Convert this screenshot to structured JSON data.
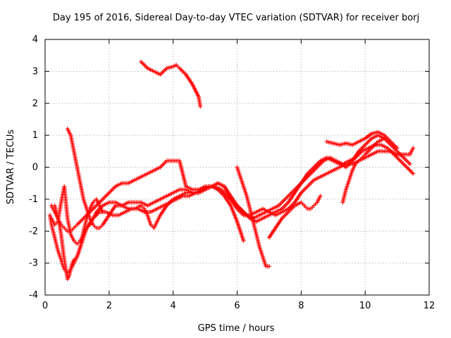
{
  "chart_data": {
    "type": "scatter",
    "title": "Day 195 of 2016, Sidereal Day-to-day VTEC variation (SDTVAR) for receiver borj",
    "xlabel": "GPS time / hours",
    "ylabel": "SDTVAR / TECUs",
    "xlim": [
      0,
      12
    ],
    "ylim": [
      -4,
      4
    ],
    "xticks": [
      "0",
      "2",
      "4",
      "6",
      "8",
      "10",
      "12"
    ],
    "yticks": [
      "-4",
      "-3",
      "-2",
      "-1",
      "0",
      "1",
      "2",
      "3",
      "4"
    ],
    "grid": true,
    "marker": "+",
    "color": "#ff0000",
    "series": [
      {
        "x": [
          3.0,
          3.2,
          3.4,
          3.6,
          3.8,
          4.0,
          4.1,
          4.2,
          4.4,
          4.6,
          4.8,
          4.85
        ],
        "y": [
          3.3,
          3.1,
          3.0,
          2.9,
          3.1,
          3.15,
          3.2,
          3.1,
          2.9,
          2.6,
          2.2,
          1.9
        ]
      },
      {
        "x": [
          0.7,
          0.8,
          0.9,
          1.0,
          1.1,
          1.2,
          1.3,
          1.4,
          1.5,
          1.6,
          1.7,
          1.8,
          2.0,
          2.2,
          2.4,
          2.6,
          2.8,
          3.0,
          3.2,
          3.4,
          3.6,
          3.8,
          4.0,
          4.2,
          4.4,
          4.6,
          4.8,
          5.0,
          5.2,
          5.4,
          5.6,
          5.8,
          6.0,
          6.2
        ],
        "y": [
          1.2,
          1.0,
          0.5,
          0.0,
          -0.5,
          -1.0,
          -1.3,
          -1.6,
          -1.8,
          -1.9,
          -1.9,
          -1.8,
          -1.5,
          -1.2,
          -1.2,
          -1.1,
          -1.1,
          -1.1,
          -1.2,
          -1.1,
          -1.0,
          -0.9,
          -0.8,
          -0.7,
          -0.7,
          -0.8,
          -0.8,
          -0.7,
          -0.6,
          -0.7,
          -0.9,
          -1.2,
          -1.7,
          -2.3
        ]
      },
      {
        "x": [
          0.15,
          0.2,
          0.3,
          0.4,
          0.5,
          0.6,
          0.7,
          0.8,
          0.9,
          1.0,
          1.1,
          1.2,
          1.3,
          1.5,
          1.7,
          1.9,
          2.1,
          2.3,
          2.5,
          2.7,
          2.9,
          3.1,
          3.3,
          3.5,
          3.7,
          3.9,
          4.1,
          4.3,
          4.5,
          4.7,
          4.9,
          5.1,
          5.3,
          5.5,
          5.7,
          5.9,
          6.1,
          6.3,
          6.5,
          6.7,
          6.9,
          7.1,
          7.3,
          7.5,
          7.7,
          7.9,
          8.1,
          8.3,
          8.5,
          8.7,
          8.9,
          9.1,
          9.3,
          9.5,
          9.7,
          9.9,
          10.1,
          10.3,
          10.5,
          10.7,
          10.9,
          11.1,
          11.3,
          11.5
        ],
        "y": [
          -1.5,
          -1.8,
          -2.2,
          -2.6,
          -2.9,
          -3.2,
          -3.3,
          -3.2,
          -3.0,
          -2.8,
          -2.5,
          -2.2,
          -1.9,
          -1.6,
          -1.4,
          -1.4,
          -1.5,
          -1.5,
          -1.4,
          -1.3,
          -1.3,
          -1.4,
          -1.4,
          -1.3,
          -1.2,
          -1.1,
          -1.0,
          -0.9,
          -0.9,
          -0.8,
          -0.7,
          -0.6,
          -0.6,
          -0.7,
          -0.9,
          -1.1,
          -1.3,
          -1.5,
          -1.6,
          -1.5,
          -1.4,
          -1.3,
          -1.2,
          -1.0,
          -0.8,
          -0.6,
          -0.4,
          -0.2,
          0.0,
          0.2,
          0.3,
          0.2,
          0.1,
          0.2,
          0.3,
          0.5,
          0.6,
          0.7,
          0.7,
          0.6,
          0.4,
          0.2,
          0.0,
          -0.2
        ]
      },
      {
        "x": [
          0.2,
          0.3,
          0.4,
          0.5,
          0.6,
          0.7,
          0.8,
          0.9,
          1.0,
          1.2,
          1.4,
          1.6,
          1.8,
          2.0,
          2.2,
          2.4,
          2.6,
          2.8,
          3.0,
          3.2,
          3.4,
          3.6,
          3.8,
          4.0,
          4.2,
          4.4,
          4.6,
          4.8,
          5.0,
          5.2,
          5.4,
          5.6,
          5.8,
          6.0,
          6.2,
          6.4,
          6.6,
          6.8,
          7.0,
          7.2,
          7.4,
          7.6,
          7.8,
          8.0,
          8.2,
          8.4,
          8.6,
          8.8,
          9.0,
          9.2,
          9.4,
          9.6,
          9.8,
          10.0,
          10.2,
          10.4,
          10.6,
          10.8,
          11.0,
          11.2,
          11.4
        ],
        "y": [
          -1.2,
          -1.4,
          -1.6,
          -1.8,
          -1.9,
          -2.0,
          -2.0,
          -1.9,
          -1.8,
          -1.6,
          -1.4,
          -1.2,
          -1.0,
          -0.8,
          -0.6,
          -0.5,
          -0.5,
          -0.4,
          -0.3,
          -0.2,
          -0.1,
          0.0,
          0.2,
          0.2,
          0.2,
          -0.6,
          -0.7,
          -0.7,
          -0.6,
          -0.6,
          -0.5,
          -0.6,
          -0.9,
          -1.2,
          -1.4,
          -1.6,
          -1.7,
          -1.6,
          -1.5,
          -1.4,
          -1.3,
          -1.1,
          -0.8,
          -0.5,
          -0.2,
          0.0,
          0.2,
          0.3,
          0.2,
          0.1,
          0.0,
          0.2,
          0.5,
          0.7,
          0.9,
          1.0,
          0.9,
          0.7,
          0.5,
          0.3,
          0.1
        ]
      },
      {
        "x": [
          0.2,
          0.3,
          0.4,
          0.5,
          0.6,
          0.7,
          0.8,
          0.9,
          1.0,
          1.1,
          1.2,
          1.3,
          1.4,
          1.5,
          1.6,
          1.8,
          2.0,
          2.2,
          2.4,
          2.6,
          2.8,
          3.0,
          3.1,
          3.2,
          3.3,
          3.4,
          3.5,
          3.6,
          3.8,
          4.0,
          4.2,
          4.4,
          4.6,
          4.8,
          5.0,
          5.2,
          5.4,
          5.6,
          5.8,
          6.0,
          6.2,
          6.4,
          6.6,
          6.8,
          7.0,
          7.2,
          7.4,
          7.6,
          7.8,
          8.0,
          8.2,
          8.4,
          8.6,
          8.8,
          9.0,
          9.2,
          9.4,
          9.6,
          9.8,
          10.0,
          10.2,
          10.4,
          10.6,
          10.8,
          11.0,
          11.2,
          11.4,
          11.5
        ],
        "y": [
          -1.6,
          -1.8,
          -1.7,
          -1.1,
          -0.6,
          -1.6,
          -2.1,
          -2.3,
          -2.4,
          -2.3,
          -2.1,
          -1.9,
          -1.8,
          -1.6,
          -1.4,
          -1.2,
          -1.1,
          -1.1,
          -1.2,
          -1.3,
          -1.3,
          -1.2,
          -1.3,
          -1.5,
          -1.8,
          -1.9,
          -1.7,
          -1.5,
          -1.2,
          -1.0,
          -0.9,
          -0.8,
          -0.8,
          -0.8,
          -0.7,
          -0.6,
          -0.5,
          -0.6,
          -1.0,
          -1.3,
          -1.5,
          -1.5,
          -1.4,
          -1.3,
          -1.4,
          -1.5,
          -1.4,
          -1.3,
          -1.1,
          -0.8,
          -0.6,
          -0.4,
          -0.3,
          -0.2,
          -0.1,
          0.0,
          0.1,
          0.1,
          0.2,
          0.3,
          0.4,
          0.5,
          0.5,
          0.5,
          0.4,
          0.4,
          0.4,
          0.6
        ]
      },
      {
        "x": [
          0.3,
          0.35,
          0.4,
          0.45,
          0.5,
          0.55,
          0.6,
          0.65,
          0.7,
          0.75,
          0.8,
          0.85,
          0.9,
          1.0,
          1.1,
          1.2,
          1.3,
          1.4,
          1.5,
          1.6,
          1.7,
          1.8
        ],
        "y": [
          -1.2,
          -1.4,
          -1.6,
          -1.8,
          -2.1,
          -2.5,
          -2.9,
          -3.2,
          -3.5,
          -3.4,
          -3.2,
          -3.0,
          -2.9,
          -2.8,
          -2.5,
          -2.0,
          -1.6,
          -1.3,
          -1.1,
          -1.0,
          -1.2,
          -1.4
        ]
      },
      {
        "x": [
          6.0,
          6.1,
          6.2,
          6.3,
          6.4,
          6.5,
          6.6,
          6.7,
          6.8,
          6.9,
          7.0
        ],
        "y": [
          0.0,
          -0.3,
          -0.6,
          -0.9,
          -1.3,
          -1.7,
          -2.1,
          -2.5,
          -2.8,
          -3.1,
          -3.1
        ]
      },
      {
        "x": [
          7.0,
          7.2,
          7.4,
          7.6,
          7.8,
          8.0,
          8.1,
          8.2,
          8.3,
          8.4,
          8.5,
          8.6
        ],
        "y": [
          -2.2,
          -1.9,
          -1.6,
          -1.4,
          -1.2,
          -1.1,
          -1.2,
          -1.3,
          -1.3,
          -1.2,
          -1.1,
          -0.9
        ]
      },
      {
        "x": [
          8.8,
          9.0,
          9.2,
          9.4,
          9.6,
          9.8,
          10.0,
          10.2,
          10.4,
          10.6,
          10.8,
          11.0
        ],
        "y": [
          0.8,
          0.75,
          0.7,
          0.75,
          0.7,
          0.8,
          0.9,
          1.05,
          1.1,
          1.0,
          0.8,
          0.6
        ]
      },
      {
        "x": [
          9.3,
          9.4,
          9.5,
          9.6,
          9.7,
          9.8,
          9.9,
          10.0,
          10.2,
          10.4,
          10.6
        ],
        "y": [
          -1.1,
          -0.7,
          -0.4,
          -0.1,
          0.1,
          0.2,
          0.3,
          0.4,
          0.6,
          0.8,
          0.9
        ]
      }
    ]
  }
}
